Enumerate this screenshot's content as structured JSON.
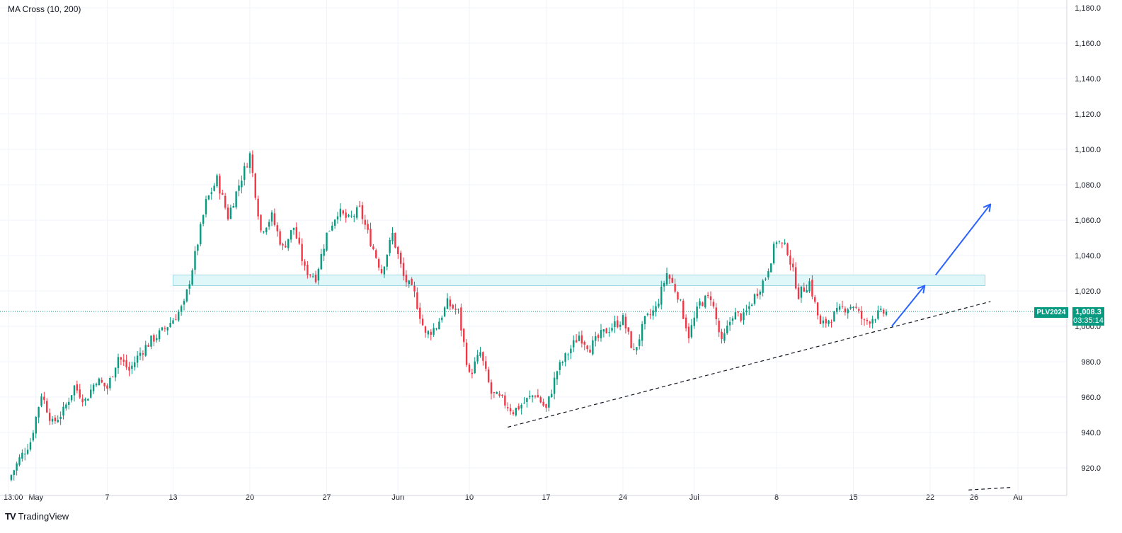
{
  "indicator_label": "MA Cross (10, 200)",
  "brand": {
    "logo": "TV",
    "name": "TradingView"
  },
  "symbol": "PLV2024",
  "last_price": "1,008.3",
  "countdown": "03:35:14",
  "colors": {
    "up": "#089981",
    "down": "#f23645",
    "zone_fill": "#e0f7fa",
    "zone_stroke": "#9fd8e3",
    "arrow": "#2962ff",
    "price_line": "#089981",
    "grid": "#f0f3fa",
    "text": "#131722"
  },
  "chart_data": {
    "type": "candlestick",
    "title": "",
    "xlabel": "",
    "ylabel": "",
    "ylim": [
      906,
      1184
    ],
    "grid": true,
    "y_ticks": [
      "920.0",
      "940.0",
      "960.0",
      "980.0",
      "1,000.0",
      "1,020.0",
      "1,040.0",
      "1,060.0",
      "1,080.0",
      "1,100.0",
      "1,120.0",
      "1,140.0",
      "1,160.0",
      "1,180.0"
    ],
    "y_tick_values": [
      920,
      940,
      960,
      980,
      1000,
      1020,
      1040,
      1060,
      1080,
      1100,
      1120,
      1140,
      1160,
      1180
    ],
    "x_ticks": [
      "13:00",
      "May",
      "7",
      "13",
      "20",
      "27",
      "Jun",
      "10",
      "17",
      "24",
      "Jul",
      "8",
      "15",
      "22",
      "26",
      "Au"
    ],
    "x_tick_days": [
      0,
      2.5,
      9,
      15,
      22,
      29,
      35.5,
      42,
      49,
      56,
      62.5,
      70,
      77,
      84,
      88,
      92
    ],
    "close_path": [
      [
        0,
        913
      ],
      [
        1,
        925
      ],
      [
        2,
        935
      ],
      [
        3,
        962
      ],
      [
        4,
        945
      ],
      [
        5,
        952
      ],
      [
        6,
        966
      ],
      [
        7,
        958
      ],
      [
        8,
        970
      ],
      [
        9,
        965
      ],
      [
        10,
        983
      ],
      [
        11,
        975
      ],
      [
        12,
        985
      ],
      [
        13,
        992
      ],
      [
        14,
        997
      ],
      [
        15,
        1004
      ],
      [
        16,
        1012
      ],
      [
        17,
        1040
      ],
      [
        18,
        1070
      ],
      [
        19,
        1083
      ],
      [
        20,
        1062
      ],
      [
        21,
        1080
      ],
      [
        22,
        1097
      ],
      [
        23,
        1054
      ],
      [
        24,
        1062
      ],
      [
        25,
        1044
      ],
      [
        26,
        1056
      ],
      [
        27,
        1032
      ],
      [
        28,
        1028
      ],
      [
        29,
        1052
      ],
      [
        30,
        1065
      ],
      [
        31,
        1060
      ],
      [
        32,
        1066
      ],
      [
        33,
        1048
      ],
      [
        34,
        1031
      ],
      [
        35,
        1052
      ],
      [
        36,
        1028
      ],
      [
        37,
        1018
      ],
      [
        38,
        995
      ],
      [
        39,
        1000
      ],
      [
        40,
        1013
      ],
      [
        41,
        1008
      ],
      [
        42,
        972
      ],
      [
        43,
        985
      ],
      [
        44,
        962
      ],
      [
        45,
        958
      ],
      [
        46,
        952
      ],
      [
        47,
        957
      ],
      [
        48,
        962
      ],
      [
        49,
        953
      ],
      [
        50,
        975
      ],
      [
        51,
        985
      ],
      [
        52,
        995
      ],
      [
        53,
        988
      ],
      [
        54,
        995
      ],
      [
        55,
        1000
      ],
      [
        56,
        1004
      ],
      [
        57,
        985
      ],
      [
        58,
        1003
      ],
      [
        59,
        1010
      ],
      [
        60,
        1030
      ],
      [
        61,
        1018
      ],
      [
        62,
        995
      ],
      [
        63,
        1013
      ],
      [
        64,
        1017
      ],
      [
        65,
        990
      ],
      [
        66,
        1007
      ],
      [
        67,
        1005
      ],
      [
        68,
        1017
      ],
      [
        69,
        1028
      ],
      [
        70,
        1049
      ],
      [
        71,
        1043
      ],
      [
        72,
        1018
      ],
      [
        73,
        1025
      ],
      [
        74,
        1000
      ],
      [
        75,
        1005
      ],
      [
        76,
        1010
      ],
      [
        77,
        1012
      ],
      [
        78,
        1002
      ],
      [
        79,
        1006
      ],
      [
        80,
        1008.3
      ]
    ],
    "last_close": 1008.3,
    "resistance_zone": {
      "day_start": 15,
      "day_end": 89,
      "low": 1023,
      "high": 1029
    },
    "trendline": {
      "start": [
        45.5,
        943
      ],
      "end": [
        89.5,
        1014
      ]
    },
    "trendline_far": {
      "start": [
        87.5,
        907.5
      ],
      "end": [
        91.5,
        909
      ]
    },
    "arrows": [
      {
        "start": [
          80.5,
          1000
        ],
        "end": [
          83.5,
          1023
        ]
      },
      {
        "start": [
          84.5,
          1029
        ],
        "end": [
          89.5,
          1069
        ]
      }
    ]
  }
}
